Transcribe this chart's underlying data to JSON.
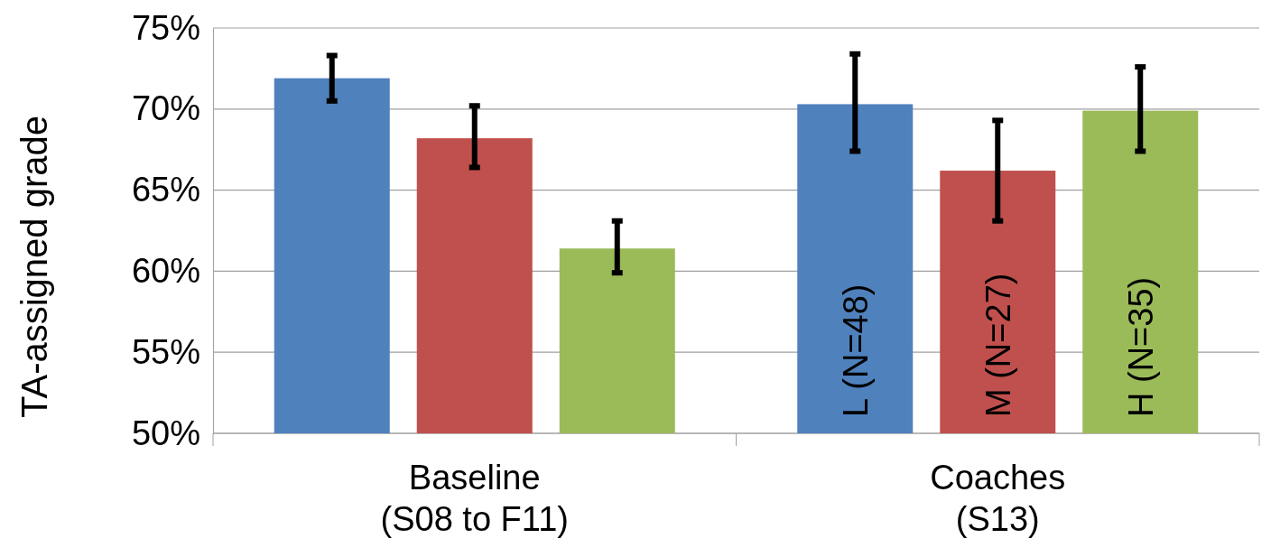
{
  "chart_data": {
    "type": "bar",
    "ylabel": "TA-assigned grade",
    "categories": [
      "Baseline\n(S08 to F11)",
      "Coaches\n(S13)"
    ],
    "series": [
      {
        "name": "L (N=48)",
        "color": "#4f81bd",
        "values": [
          71.9,
          70.3
        ],
        "errors": [
          [
            70.5,
            73.3
          ],
          [
            67.4,
            73.4
          ]
        ]
      },
      {
        "name": "M (N=27)",
        "color": "#c0504d",
        "values": [
          68.2,
          66.2
        ],
        "errors": [
          [
            66.4,
            70.2
          ],
          [
            63.1,
            69.3
          ]
        ]
      },
      {
        "name": "H (N=35)",
        "color": "#9bbb59",
        "values": [
          61.4,
          69.9
        ],
        "errors": [
          [
            59.9,
            63.1
          ],
          [
            67.4,
            72.6
          ]
        ]
      }
    ],
    "ylim": [
      50,
      75
    ],
    "yticks": [
      {
        "value": 50,
        "label": "50%"
      },
      {
        "value": 55,
        "label": "55%"
      },
      {
        "value": 60,
        "label": "60%"
      },
      {
        "value": 65,
        "label": "65%"
      },
      {
        "value": 70,
        "label": "70%"
      },
      {
        "value": 75,
        "label": "75%"
      }
    ],
    "grid": "y",
    "legend": false
  }
}
